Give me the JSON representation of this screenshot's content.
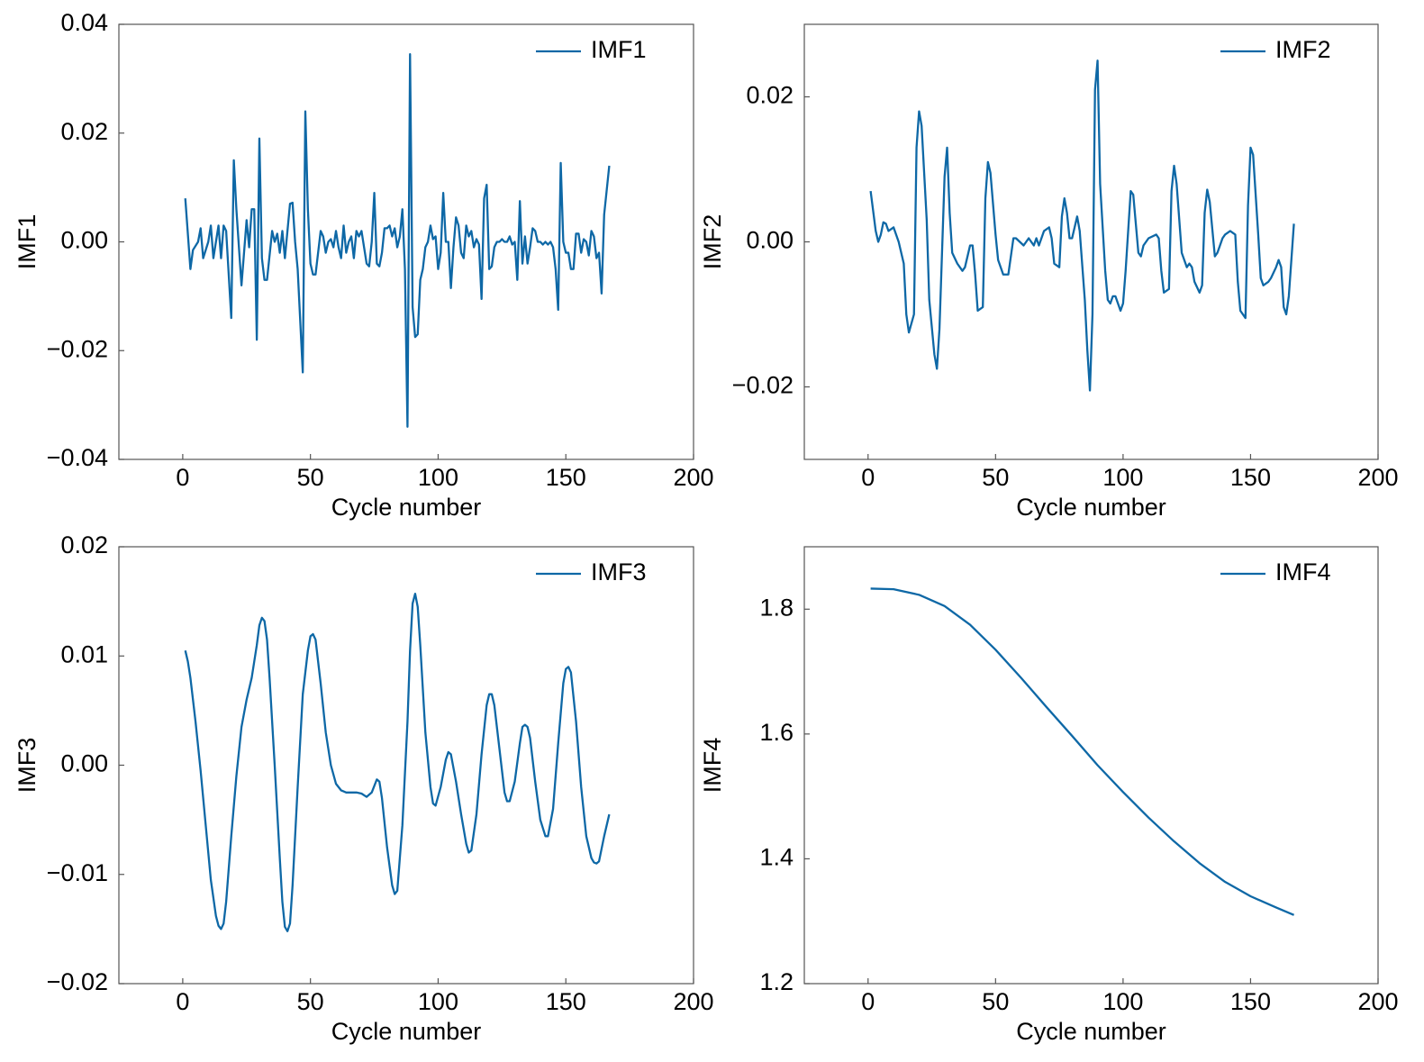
{
  "chart_data": [
    {
      "type": "line",
      "xlabel": "Cycle number",
      "ylabel": "IMF1",
      "legend": "upper right",
      "xlim": [
        -25,
        200
      ],
      "xticks": [
        0,
        50,
        100,
        150,
        200
      ],
      "ylim": [
        -0.04,
        0.04
      ],
      "yticks": [
        {
          "value": -0.04,
          "label": "−0.04"
        },
        {
          "value": -0.02,
          "label": "−0.02"
        },
        {
          "value": 0,
          "label": "0.00"
        },
        0.02,
        0.04
      ],
      "x": [
        1,
        3,
        4,
        6,
        7,
        8,
        10,
        11,
        12,
        14,
        15,
        16,
        17,
        19,
        20,
        21,
        23,
        25,
        26,
        27,
        28,
        29,
        30,
        31,
        32,
        33,
        35,
        36,
        37,
        38,
        39,
        40,
        42,
        43,
        44,
        45,
        47,
        48,
        49,
        50,
        51,
        52,
        54,
        55,
        56,
        57,
        58,
        59,
        60,
        61,
        62,
        63,
        64,
        65,
        66,
        67,
        68,
        69,
        70,
        71,
        72,
        73,
        74,
        75,
        76,
        77,
        78,
        79,
        80,
        81,
        82,
        83,
        84,
        85,
        86,
        87,
        88,
        89,
        90,
        91,
        92,
        93,
        94,
        95,
        96,
        97,
        98,
        99,
        100,
        101,
        102,
        103,
        104,
        105,
        106,
        107,
        108,
        109,
        110,
        111,
        112,
        113,
        114,
        115,
        116,
        117,
        118,
        119,
        120,
        121,
        122,
        123,
        124,
        125,
        126,
        127,
        128,
        129,
        130,
        131,
        132,
        133,
        134,
        135,
        136,
        137,
        138,
        139,
        140,
        141,
        142,
        143,
        144,
        145,
        146,
        147,
        148,
        149,
        150,
        151,
        152,
        153,
        154,
        155,
        156,
        157,
        158,
        159,
        160,
        161,
        162,
        163,
        164,
        165,
        167
      ],
      "series": [
        {
          "name": "IMF1",
          "color": "#0e68a6",
          "values": [
            0.008,
            -0.005,
            -0.0015,
            0.0,
            0.0025,
            -0.003,
            0.0,
            0.003,
            -0.003,
            0.003,
            -0.003,
            0.003,
            0.002,
            -0.014,
            0.015,
            0.006,
            -0.008,
            0.004,
            -0.001,
            0.006,
            0.006,
            -0.018,
            0.019,
            -0.003,
            -0.007,
            -0.007,
            0.002,
            0.0,
            0.0015,
            -0.002,
            0.002,
            -0.003,
            0.007,
            0.0072,
            0.0,
            -0.005,
            -0.024,
            0.024,
            0.006,
            -0.004,
            -0.006,
            -0.006,
            0.002,
            0.001,
            -0.002,
            0.0,
            0.0005,
            -0.001,
            0.002,
            -0.001,
            -0.003,
            0.003,
            -0.002,
            0.0,
            0.001,
            -0.003,
            0.002,
            0.001,
            0.002,
            -0.001,
            -0.004,
            -0.0045,
            0.0,
            0.009,
            -0.004,
            -0.0045,
            -0.002,
            0.0025,
            0.0025,
            0.003,
            0.001,
            0.0025,
            -0.001,
            0.001,
            0.006,
            -0.005,
            -0.034,
            0.0345,
            -0.012,
            -0.0175,
            -0.017,
            -0.007,
            -0.005,
            -0.001,
            0.0,
            0.003,
            0.0005,
            0.001,
            -0.005,
            -0.002,
            0.009,
            0.0,
            0.0,
            -0.0085,
            -0.001,
            0.0045,
            0.003,
            -0.002,
            -0.003,
            0.003,
            0.001,
            0.002,
            -0.001,
            0.0005,
            -0.0005,
            -0.0105,
            0.008,
            0.0105,
            -0.005,
            -0.0045,
            -0.001,
            0.0,
            0.0,
            0.0005,
            0.0,
            0.0,
            0.001,
            -0.0005,
            0.0,
            -0.007,
            0.0075,
            -0.004,
            0.001,
            -0.004,
            -0.001,
            0.0025,
            0.002,
            0.0,
            0.0,
            -0.0005,
            0.0,
            -0.0005,
            0.0,
            -0.001,
            -0.005,
            -0.0125,
            0.0145,
            0.0,
            -0.002,
            -0.002,
            -0.005,
            -0.005,
            0.0015,
            0.0015,
            -0.002,
            0.0005,
            0.0,
            -0.0025,
            0.002,
            0.001,
            -0.003,
            -0.002,
            -0.0095,
            0.005,
            0.014
          ]
        }
      ]
    },
    {
      "type": "line",
      "xlabel": "Cycle number",
      "ylabel": "IMF2",
      "legend": "upper right",
      "xlim": [
        -25,
        200
      ],
      "xticks": [
        0,
        50,
        100,
        150,
        200
      ],
      "ylim": [
        -0.03,
        0.03
      ],
      "yticks": [
        {
          "value": -0.02,
          "label": "−0.02"
        },
        {
          "value": 0,
          "label": "0.00"
        },
        0.02
      ],
      "x": [
        1,
        3,
        4,
        5,
        6,
        7,
        8,
        10,
        12,
        14,
        15,
        16,
        18,
        19,
        20,
        21,
        23,
        24,
        26,
        27,
        28,
        30,
        31,
        32,
        33,
        35,
        37,
        38,
        40,
        41,
        42,
        43,
        45,
        46,
        47,
        48,
        50,
        51,
        53,
        55,
        57,
        58,
        61,
        63,
        65,
        66,
        67,
        69,
        71,
        72,
        73,
        75,
        76,
        77,
        78,
        79,
        80,
        82,
        83,
        85,
        86,
        87,
        88,
        89,
        90,
        91,
        93,
        94,
        95,
        96,
        97,
        99,
        100,
        101,
        103,
        104,
        106,
        107,
        108,
        110,
        113,
        114,
        115,
        116,
        118,
        119,
        120,
        121,
        123,
        125,
        126,
        127,
        128,
        130,
        131,
        132,
        133,
        134,
        136,
        137,
        139,
        140,
        142,
        144,
        145,
        146,
        148,
        149,
        150,
        151,
        153,
        154,
        155,
        157,
        158,
        160,
        161,
        162,
        163,
        164,
        165,
        167
      ],
      "series": [
        {
          "name": "IMF2",
          "color": "#0e68a6",
          "values": [
            0.007,
            0.0015,
            0.0,
            0.001,
            0.0027,
            0.0025,
            0.0015,
            0.002,
            0.0,
            -0.003,
            -0.01,
            -0.0125,
            -0.01,
            0.013,
            0.018,
            0.016,
            0.003,
            -0.008,
            -0.0155,
            -0.0175,
            -0.012,
            0.009,
            0.013,
            0.004,
            -0.0015,
            -0.003,
            -0.004,
            -0.0035,
            -0.0005,
            -0.0005,
            -0.0045,
            -0.0095,
            -0.009,
            0.006,
            0.011,
            0.0095,
            0.001,
            -0.0025,
            -0.0045,
            -0.0045,
            0.0005,
            0.0005,
            -0.0005,
            0.0005,
            -0.0005,
            0.0005,
            -0.0005,
            0.0015,
            0.002,
            0.0005,
            -0.003,
            -0.0035,
            0.0035,
            0.006,
            0.004,
            0.0005,
            0.0005,
            0.0035,
            0.0015,
            -0.008,
            -0.015,
            -0.0205,
            -0.01,
            0.021,
            0.025,
            0.008,
            -0.004,
            -0.008,
            -0.0085,
            -0.0075,
            -0.0075,
            -0.0095,
            -0.0085,
            -0.004,
            0.007,
            0.0065,
            -0.0015,
            -0.002,
            -0.0005,
            0.0005,
            0.001,
            0.0005,
            -0.004,
            -0.007,
            -0.0065,
            0.007,
            0.0105,
            0.008,
            -0.0015,
            -0.0035,
            -0.003,
            -0.0035,
            -0.0055,
            -0.007,
            -0.006,
            0.004,
            0.0072,
            0.0055,
            -0.002,
            -0.0015,
            0.0005,
            0.001,
            0.0015,
            0.001,
            -0.0055,
            -0.0095,
            -0.0105,
            0.005,
            0.013,
            0.012,
            0.001,
            -0.005,
            -0.006,
            -0.0055,
            -0.005,
            -0.0035,
            -0.0025,
            -0.0035,
            -0.009,
            -0.01,
            -0.0075,
            0.0025
          ]
        }
      ]
    },
    {
      "type": "line",
      "xlabel": "Cycle number",
      "ylabel": "IMF3",
      "legend": "upper right",
      "xlim": [
        -25,
        200
      ],
      "xticks": [
        0,
        50,
        100,
        150,
        200
      ],
      "ylim": [
        -0.02,
        0.02
      ],
      "yticks": [
        {
          "value": -0.02,
          "label": "−0.02"
        },
        {
          "value": -0.01,
          "label": "−0.01"
        },
        {
          "value": 0,
          "label": "0.00"
        },
        0.01,
        0.02
      ],
      "x": [
        1,
        2,
        3,
        5,
        7,
        9,
        11,
        13,
        14,
        15,
        16,
        17,
        19,
        21,
        23,
        25,
        27,
        29,
        30,
        31,
        32,
        33,
        34,
        36,
        38,
        39,
        40,
        41,
        42,
        43,
        45,
        47,
        49,
        50,
        51,
        52,
        54,
        56,
        58,
        60,
        62,
        64,
        68,
        70,
        72,
        74,
        76,
        77,
        78,
        80,
        82,
        83,
        84,
        86,
        88,
        89,
        90,
        91,
        92,
        93,
        95,
        97,
        98,
        99,
        101,
        103,
        104,
        105,
        107,
        109,
        111,
        112,
        113,
        115,
        117,
        119,
        120,
        121,
        122,
        124,
        126,
        127,
        128,
        130,
        132,
        133,
        134,
        135,
        136,
        138,
        140,
        142,
        143,
        145,
        147,
        149,
        150,
        151,
        152,
        154,
        156,
        158,
        160,
        161,
        162,
        163,
        165,
        167
      ],
      "series": [
        {
          "name": "IMF3",
          "color": "#0e68a6",
          "values": [
            0.0105,
            0.0095,
            0.008,
            0.004,
            -0.0005,
            -0.0055,
            -0.0105,
            -0.0138,
            -0.0147,
            -0.015,
            -0.0145,
            -0.0125,
            -0.0065,
            -0.001,
            0.0035,
            0.006,
            0.008,
            0.011,
            0.0128,
            0.0135,
            0.0132,
            0.0115,
            0.008,
            0.0,
            -0.0085,
            -0.0125,
            -0.0148,
            -0.0152,
            -0.0145,
            -0.011,
            -0.002,
            0.0065,
            0.0105,
            0.0118,
            0.012,
            0.0115,
            0.0075,
            0.003,
            0.0,
            -0.0017,
            -0.0023,
            -0.0025,
            -0.0025,
            -0.0026,
            -0.0029,
            -0.0025,
            -0.0013,
            -0.0015,
            -0.003,
            -0.0075,
            -0.011,
            -0.0118,
            -0.0115,
            -0.0055,
            0.004,
            0.0105,
            0.0148,
            0.0157,
            0.0145,
            0.011,
            0.003,
            -0.002,
            -0.0035,
            -0.0037,
            -0.002,
            0.0005,
            0.0012,
            0.001,
            -0.0015,
            -0.0045,
            -0.0072,
            -0.008,
            -0.0078,
            -0.0045,
            0.001,
            0.0055,
            0.0065,
            0.0065,
            0.0055,
            0.0015,
            -0.0025,
            -0.0033,
            -0.0033,
            -0.0015,
            0.002,
            0.0035,
            0.0037,
            0.0035,
            0.0025,
            -0.0015,
            -0.005,
            -0.0065,
            -0.0065,
            -0.004,
            0.002,
            0.0075,
            0.0088,
            0.009,
            0.0085,
            0.004,
            -0.002,
            -0.0065,
            -0.0085,
            -0.0089,
            -0.009,
            -0.0088,
            -0.0065,
            -0.0045
          ]
        }
      ]
    },
    {
      "type": "line",
      "xlabel": "Cycle number",
      "ylabel": "IMF4",
      "legend": "upper right",
      "xlim": [
        -25,
        200
      ],
      "xticks": [
        0,
        50,
        100,
        150,
        200
      ],
      "ylim": [
        1.2,
        1.9
      ],
      "yticks": [
        1.2,
        1.4,
        1.6,
        1.8
      ],
      "x": [
        1,
        10,
        20,
        30,
        40,
        50,
        60,
        70,
        80,
        90,
        100,
        110,
        120,
        130,
        140,
        150,
        160,
        167
      ],
      "series": [
        {
          "name": "IMF4",
          "color": "#0e68a6",
          "values": [
            1.833,
            1.832,
            1.823,
            1.805,
            1.775,
            1.735,
            1.69,
            1.643,
            1.597,
            1.55,
            1.507,
            1.466,
            1.428,
            1.393,
            1.363,
            1.34,
            1.322,
            1.31
          ]
        }
      ]
    }
  ]
}
